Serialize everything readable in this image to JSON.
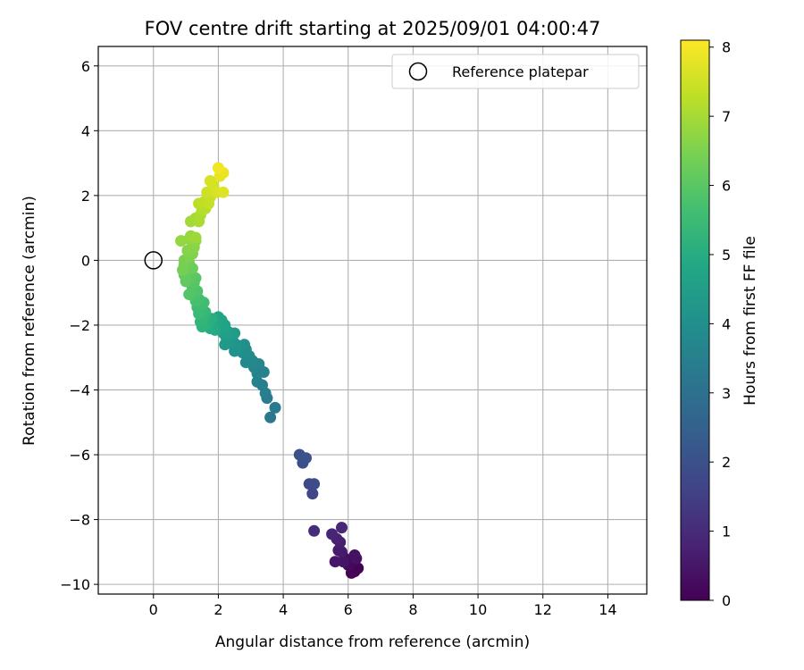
{
  "chart_data": {
    "type": "scatter",
    "title": "FOV centre drift starting at 2025/09/01 04:00:47",
    "xlabel": "Angular distance from reference (arcmin)",
    "ylabel": "Rotation from reference (arcmin)",
    "colorbar_label": "Hours from first FF file",
    "xlim": [
      -1.7,
      15.2
    ],
    "ylim": [
      -10.3,
      6.6
    ],
    "x_ticks": [
      0,
      2,
      4,
      6,
      8,
      10,
      12,
      14
    ],
    "y_ticks": [
      -10,
      -8,
      -6,
      -4,
      -2,
      0,
      2,
      4,
      6
    ],
    "colorbar_range": [
      0,
      8.1
    ],
    "colorbar_ticks": [
      0,
      1,
      2,
      3,
      4,
      5,
      6,
      7,
      8
    ],
    "colormap": "viridis",
    "grid": true,
    "legend": {
      "position": "top-right",
      "entries": [
        "Reference platepar"
      ]
    },
    "reference_point": {
      "x": 0,
      "y": 0
    },
    "points": [
      {
        "x": 6.2,
        "y": -9.6,
        "h": 0.0
      },
      {
        "x": 6.3,
        "y": -9.5,
        "h": 0.05
      },
      {
        "x": 6.1,
        "y": -9.65,
        "h": 0.1
      },
      {
        "x": 6.15,
        "y": -9.3,
        "h": 0.15
      },
      {
        "x": 6.0,
        "y": -9.4,
        "h": 0.2
      },
      {
        "x": 5.9,
        "y": -9.2,
        "h": 0.3
      },
      {
        "x": 6.2,
        "y": -9.1,
        "h": 0.35
      },
      {
        "x": 6.25,
        "y": -9.2,
        "h": 0.4
      },
      {
        "x": 5.85,
        "y": -9.3,
        "h": 0.45
      },
      {
        "x": 5.6,
        "y": -9.3,
        "h": 0.5
      },
      {
        "x": 5.8,
        "y": -9.0,
        "h": 0.55
      },
      {
        "x": 5.7,
        "y": -8.95,
        "h": 0.6
      },
      {
        "x": 5.75,
        "y": -8.7,
        "h": 0.7
      },
      {
        "x": 5.65,
        "y": -8.6,
        "h": 0.75
      },
      {
        "x": 5.5,
        "y": -8.45,
        "h": 0.85
      },
      {
        "x": 5.8,
        "y": -8.25,
        "h": 0.9
      },
      {
        "x": 4.95,
        "y": -8.35,
        "h": 1.05
      },
      {
        "x": 4.9,
        "y": -7.2,
        "h": 1.7
      },
      {
        "x": 4.8,
        "y": -6.9,
        "h": 1.8
      },
      {
        "x": 4.95,
        "y": -6.9,
        "h": 1.85
      },
      {
        "x": 4.6,
        "y": -6.25,
        "h": 1.95
      },
      {
        "x": 4.5,
        "y": -6.0,
        "h": 2.0
      },
      {
        "x": 4.7,
        "y": -6.1,
        "h": 2.05
      },
      {
        "x": 3.6,
        "y": -4.85,
        "h": 3.2
      },
      {
        "x": 3.75,
        "y": -4.55,
        "h": 3.3
      },
      {
        "x": 3.5,
        "y": -4.25,
        "h": 3.35
      },
      {
        "x": 3.45,
        "y": -4.1,
        "h": 3.4
      },
      {
        "x": 3.35,
        "y": -3.85,
        "h": 3.45
      },
      {
        "x": 3.2,
        "y": -3.75,
        "h": 3.5
      },
      {
        "x": 3.4,
        "y": -3.45,
        "h": 3.55
      },
      {
        "x": 3.2,
        "y": -3.5,
        "h": 3.6
      },
      {
        "x": 3.1,
        "y": -3.3,
        "h": 3.65
      },
      {
        "x": 3.25,
        "y": -3.2,
        "h": 3.7
      },
      {
        "x": 3.05,
        "y": -3.1,
        "h": 3.75
      },
      {
        "x": 2.85,
        "y": -3.15,
        "h": 3.8
      },
      {
        "x": 2.95,
        "y": -2.95,
        "h": 3.85
      },
      {
        "x": 2.75,
        "y": -2.85,
        "h": 3.9
      },
      {
        "x": 2.85,
        "y": -2.75,
        "h": 3.95
      },
      {
        "x": 2.8,
        "y": -2.6,
        "h": 4.0
      },
      {
        "x": 2.6,
        "y": -2.75,
        "h": 4.05
      },
      {
        "x": 2.5,
        "y": -2.8,
        "h": 4.1
      },
      {
        "x": 2.55,
        "y": -2.6,
        "h": 4.15
      },
      {
        "x": 2.45,
        "y": -2.5,
        "h": 4.2
      },
      {
        "x": 2.35,
        "y": -2.55,
        "h": 4.25
      },
      {
        "x": 2.2,
        "y": -2.6,
        "h": 4.3
      },
      {
        "x": 2.25,
        "y": -2.4,
        "h": 4.35
      },
      {
        "x": 2.4,
        "y": -2.3,
        "h": 4.4
      },
      {
        "x": 2.5,
        "y": -2.25,
        "h": 4.45
      },
      {
        "x": 2.3,
        "y": -2.2,
        "h": 4.5
      },
      {
        "x": 2.15,
        "y": -2.25,
        "h": 4.55
      },
      {
        "x": 2.05,
        "y": -2.1,
        "h": 4.6
      },
      {
        "x": 2.2,
        "y": -2.0,
        "h": 4.65
      },
      {
        "x": 2.1,
        "y": -1.85,
        "h": 4.7
      },
      {
        "x": 2.0,
        "y": -1.75,
        "h": 4.75
      },
      {
        "x": 1.95,
        "y": -1.9,
        "h": 4.8
      },
      {
        "x": 1.85,
        "y": -2.05,
        "h": 4.85
      },
      {
        "x": 1.9,
        "y": -2.15,
        "h": 4.9
      },
      {
        "x": 1.75,
        "y": -2.1,
        "h": 4.95
      },
      {
        "x": 1.7,
        "y": -1.95,
        "h": 5.0
      },
      {
        "x": 1.8,
        "y": -1.8,
        "h": 5.05
      },
      {
        "x": 1.65,
        "y": -1.85,
        "h": 5.1
      },
      {
        "x": 1.6,
        "y": -2.0,
        "h": 5.15
      },
      {
        "x": 1.5,
        "y": -2.05,
        "h": 5.2
      },
      {
        "x": 1.45,
        "y": -1.9,
        "h": 5.25
      },
      {
        "x": 1.55,
        "y": -1.75,
        "h": 5.3
      },
      {
        "x": 1.6,
        "y": -1.6,
        "h": 5.35
      },
      {
        "x": 1.5,
        "y": -1.55,
        "h": 5.4
      },
      {
        "x": 1.4,
        "y": -1.65,
        "h": 5.45
      },
      {
        "x": 1.35,
        "y": -1.45,
        "h": 5.5
      },
      {
        "x": 1.45,
        "y": -1.35,
        "h": 5.55
      },
      {
        "x": 1.55,
        "y": -1.3,
        "h": 5.6
      },
      {
        "x": 1.4,
        "y": -1.2,
        "h": 5.65
      },
      {
        "x": 1.3,
        "y": -1.25,
        "h": 5.7
      },
      {
        "x": 1.25,
        "y": -1.05,
        "h": 5.75
      },
      {
        "x": 1.35,
        "y": -0.95,
        "h": 5.8
      },
      {
        "x": 1.2,
        "y": -0.85,
        "h": 5.85
      },
      {
        "x": 1.1,
        "y": -1.05,
        "h": 5.9
      },
      {
        "x": 1.25,
        "y": -0.7,
        "h": 5.95
      },
      {
        "x": 1.3,
        "y": -0.55,
        "h": 6.0
      },
      {
        "x": 1.15,
        "y": -0.5,
        "h": 6.05
      },
      {
        "x": 1.0,
        "y": -0.65,
        "h": 6.1
      },
      {
        "x": 0.95,
        "y": -0.45,
        "h": 6.15
      },
      {
        "x": 1.05,
        "y": -0.3,
        "h": 6.2
      },
      {
        "x": 1.2,
        "y": -0.25,
        "h": 6.25
      },
      {
        "x": 1.1,
        "y": -0.1,
        "h": 6.3
      },
      {
        "x": 0.95,
        "y": -0.15,
        "h": 6.35
      },
      {
        "x": 0.9,
        "y": -0.3,
        "h": 6.4
      },
      {
        "x": 0.95,
        "y": 0.0,
        "h": 6.45
      },
      {
        "x": 1.1,
        "y": 0.1,
        "h": 6.5
      },
      {
        "x": 1.2,
        "y": 0.2,
        "h": 6.55
      },
      {
        "x": 1.05,
        "y": 0.3,
        "h": 6.6
      },
      {
        "x": 1.25,
        "y": 0.4,
        "h": 6.65
      },
      {
        "x": 1.3,
        "y": 0.6,
        "h": 6.7
      },
      {
        "x": 1.1,
        "y": 0.65,
        "h": 6.75
      },
      {
        "x": 0.85,
        "y": 0.6,
        "h": 6.8
      },
      {
        "x": 1.15,
        "y": 0.75,
        "h": 6.85
      },
      {
        "x": 1.3,
        "y": 0.7,
        "h": 6.9
      },
      {
        "x": 1.15,
        "y": 1.2,
        "h": 6.95
      },
      {
        "x": 1.3,
        "y": 1.3,
        "h": 7.0
      },
      {
        "x": 1.4,
        "y": 1.2,
        "h": 7.05
      },
      {
        "x": 1.45,
        "y": 1.4,
        "h": 7.1
      },
      {
        "x": 1.5,
        "y": 1.55,
        "h": 7.15
      },
      {
        "x": 1.6,
        "y": 1.6,
        "h": 7.2
      },
      {
        "x": 1.4,
        "y": 1.75,
        "h": 7.25
      },
      {
        "x": 1.55,
        "y": 1.8,
        "h": 7.3
      },
      {
        "x": 1.7,
        "y": 1.75,
        "h": 7.35
      },
      {
        "x": 1.75,
        "y": 1.95,
        "h": 7.4
      },
      {
        "x": 1.65,
        "y": 2.1,
        "h": 7.45
      },
      {
        "x": 1.8,
        "y": 2.15,
        "h": 7.5
      },
      {
        "x": 1.85,
        "y": 2.3,
        "h": 7.55
      },
      {
        "x": 1.75,
        "y": 2.45,
        "h": 7.6
      },
      {
        "x": 1.95,
        "y": 2.1,
        "h": 7.65
      },
      {
        "x": 2.15,
        "y": 2.1,
        "h": 7.7
      },
      {
        "x": 2.05,
        "y": 2.6,
        "h": 7.8
      },
      {
        "x": 2.15,
        "y": 2.7,
        "h": 7.85
      },
      {
        "x": 2.0,
        "y": 2.85,
        "h": 7.95
      }
    ]
  }
}
